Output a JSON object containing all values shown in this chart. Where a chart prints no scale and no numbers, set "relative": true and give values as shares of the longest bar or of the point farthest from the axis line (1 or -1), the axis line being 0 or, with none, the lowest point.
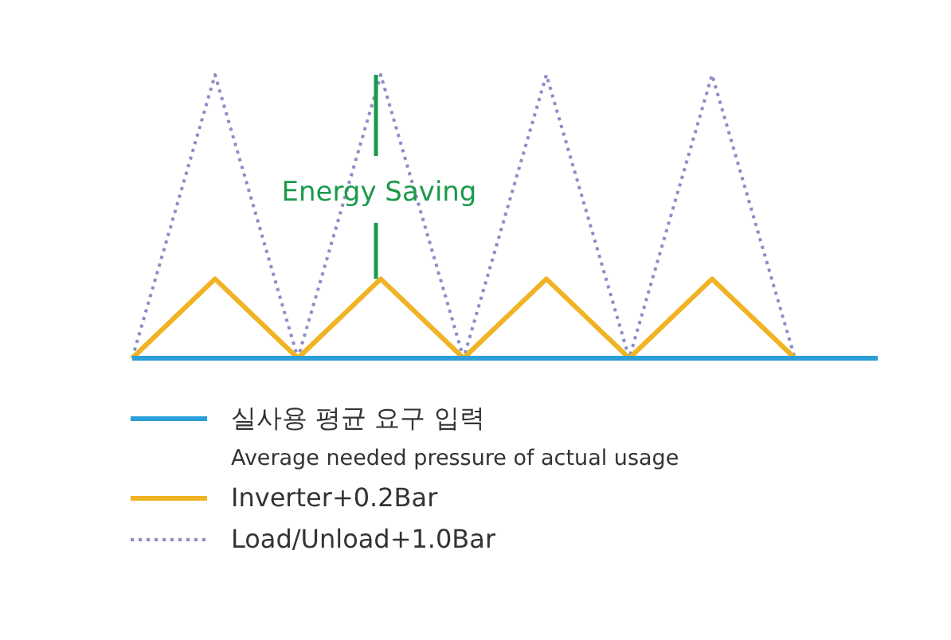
{
  "chart_data": {
    "type": "line",
    "relative": true,
    "categories": [
      null,
      null,
      null,
      null,
      null,
      null,
      null,
      null,
      null,
      null
    ],
    "series": [
      {
        "name": "실사용 평균 요구 입력\nAverage needed pressure of actual usage",
        "color": "#2a9fd8",
        "line_style": "solid",
        "values": [
          0,
          0,
          0,
          0,
          0,
          0,
          0,
          0,
          0,
          0
        ]
      },
      {
        "name": "Inverter+0.2Bar",
        "color": "#f0b323",
        "line_style": "solid",
        "values": [
          0,
          0.28,
          0,
          0.28,
          0,
          0.28,
          0,
          0.28,
          0,
          null
        ]
      },
      {
        "name": "Load/Unload+1.0Bar",
        "color": "#8c8cc8",
        "line_style": "dotted",
        "values": [
          0,
          1,
          0,
          1,
          0,
          1,
          0,
          1,
          0,
          null
        ]
      }
    ],
    "annotations": [
      "Energy Saving"
    ],
    "marker": "none",
    "legend": "bottom"
  }
}
